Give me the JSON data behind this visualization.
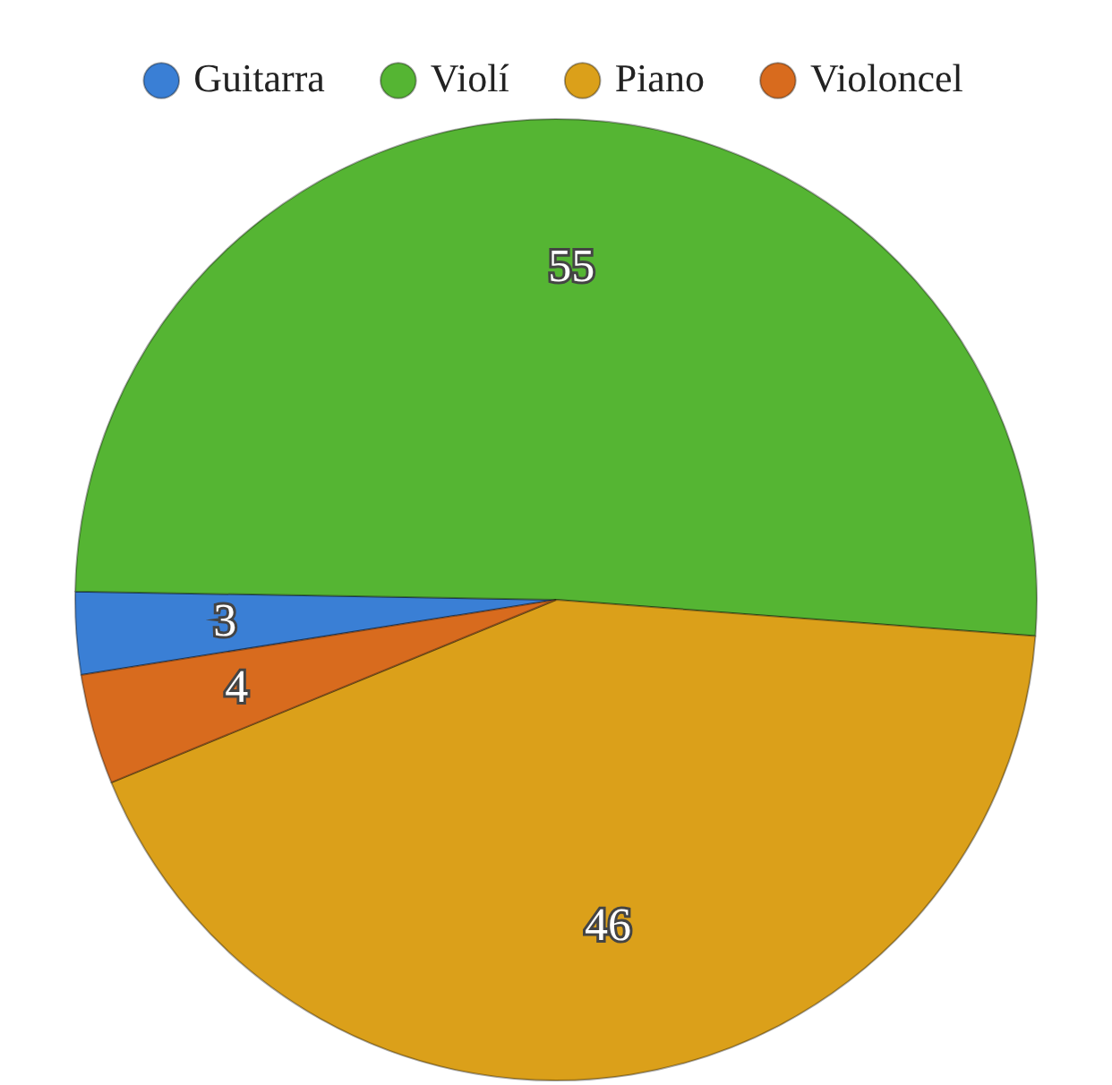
{
  "chart_data": {
    "type": "pie",
    "categories": [
      "Guitarra",
      "Violí",
      "Piano",
      "Violoncel"
    ],
    "values": [
      3,
      55,
      46,
      4
    ],
    "colors": [
      "#3a7fd5",
      "#55b533",
      "#dba01a",
      "#d86b1e"
    ],
    "legend": "top",
    "data_labels": true
  }
}
